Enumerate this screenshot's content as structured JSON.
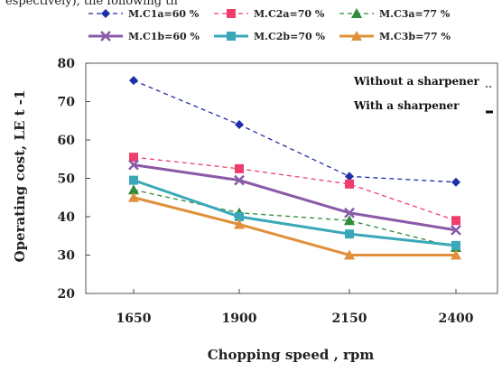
{
  "caption": "espectively), the following th",
  "chart_data": {
    "type": "line",
    "title": "",
    "xlabel": "Chopping speed , rpm",
    "ylabel": "Operating cost, LE t -1",
    "categories": [
      "1650",
      "1900",
      "2150",
      "2400"
    ],
    "ylim": [
      20,
      80
    ],
    "yticks": [
      "20",
      "30",
      "40",
      "50",
      "60",
      "70",
      "80"
    ],
    "grid": false,
    "legend_position": "top",
    "series": [
      {
        "name": "M.C1a=60 %",
        "values": [
          75.5,
          64,
          50.5,
          49
        ],
        "color": "#1f2fa8",
        "dash": true,
        "marker": "diamond"
      },
      {
        "name": "M.C2a=70 %",
        "values": [
          55.5,
          52.5,
          48.5,
          39
        ],
        "color": "#ef3e6e",
        "dash": true,
        "marker": "square"
      },
      {
        "name": "M.C3a=77 %",
        "values": [
          47,
          41,
          39,
          32
        ],
        "color": "#2e8b3a",
        "dash": true,
        "marker": "triangle"
      },
      {
        "name": "M.C1b=60 %",
        "values": [
          53.5,
          49.5,
          41,
          36.5
        ],
        "color": "#8a5aa8",
        "dash": false,
        "marker": "x"
      },
      {
        "name": "M.C2b=70 %",
        "values": [
          49.5,
          40,
          35.5,
          32.5
        ],
        "color": "#3aa8b8",
        "dash": false,
        "marker": "square"
      },
      {
        "name": "M.C3b=77 %",
        "values": [
          45,
          38,
          30,
          30
        ],
        "color": "#e0903a",
        "dash": false,
        "marker": "triangle"
      }
    ],
    "annotations": [
      "Without a sharpener",
      "With a sharpener"
    ]
  }
}
